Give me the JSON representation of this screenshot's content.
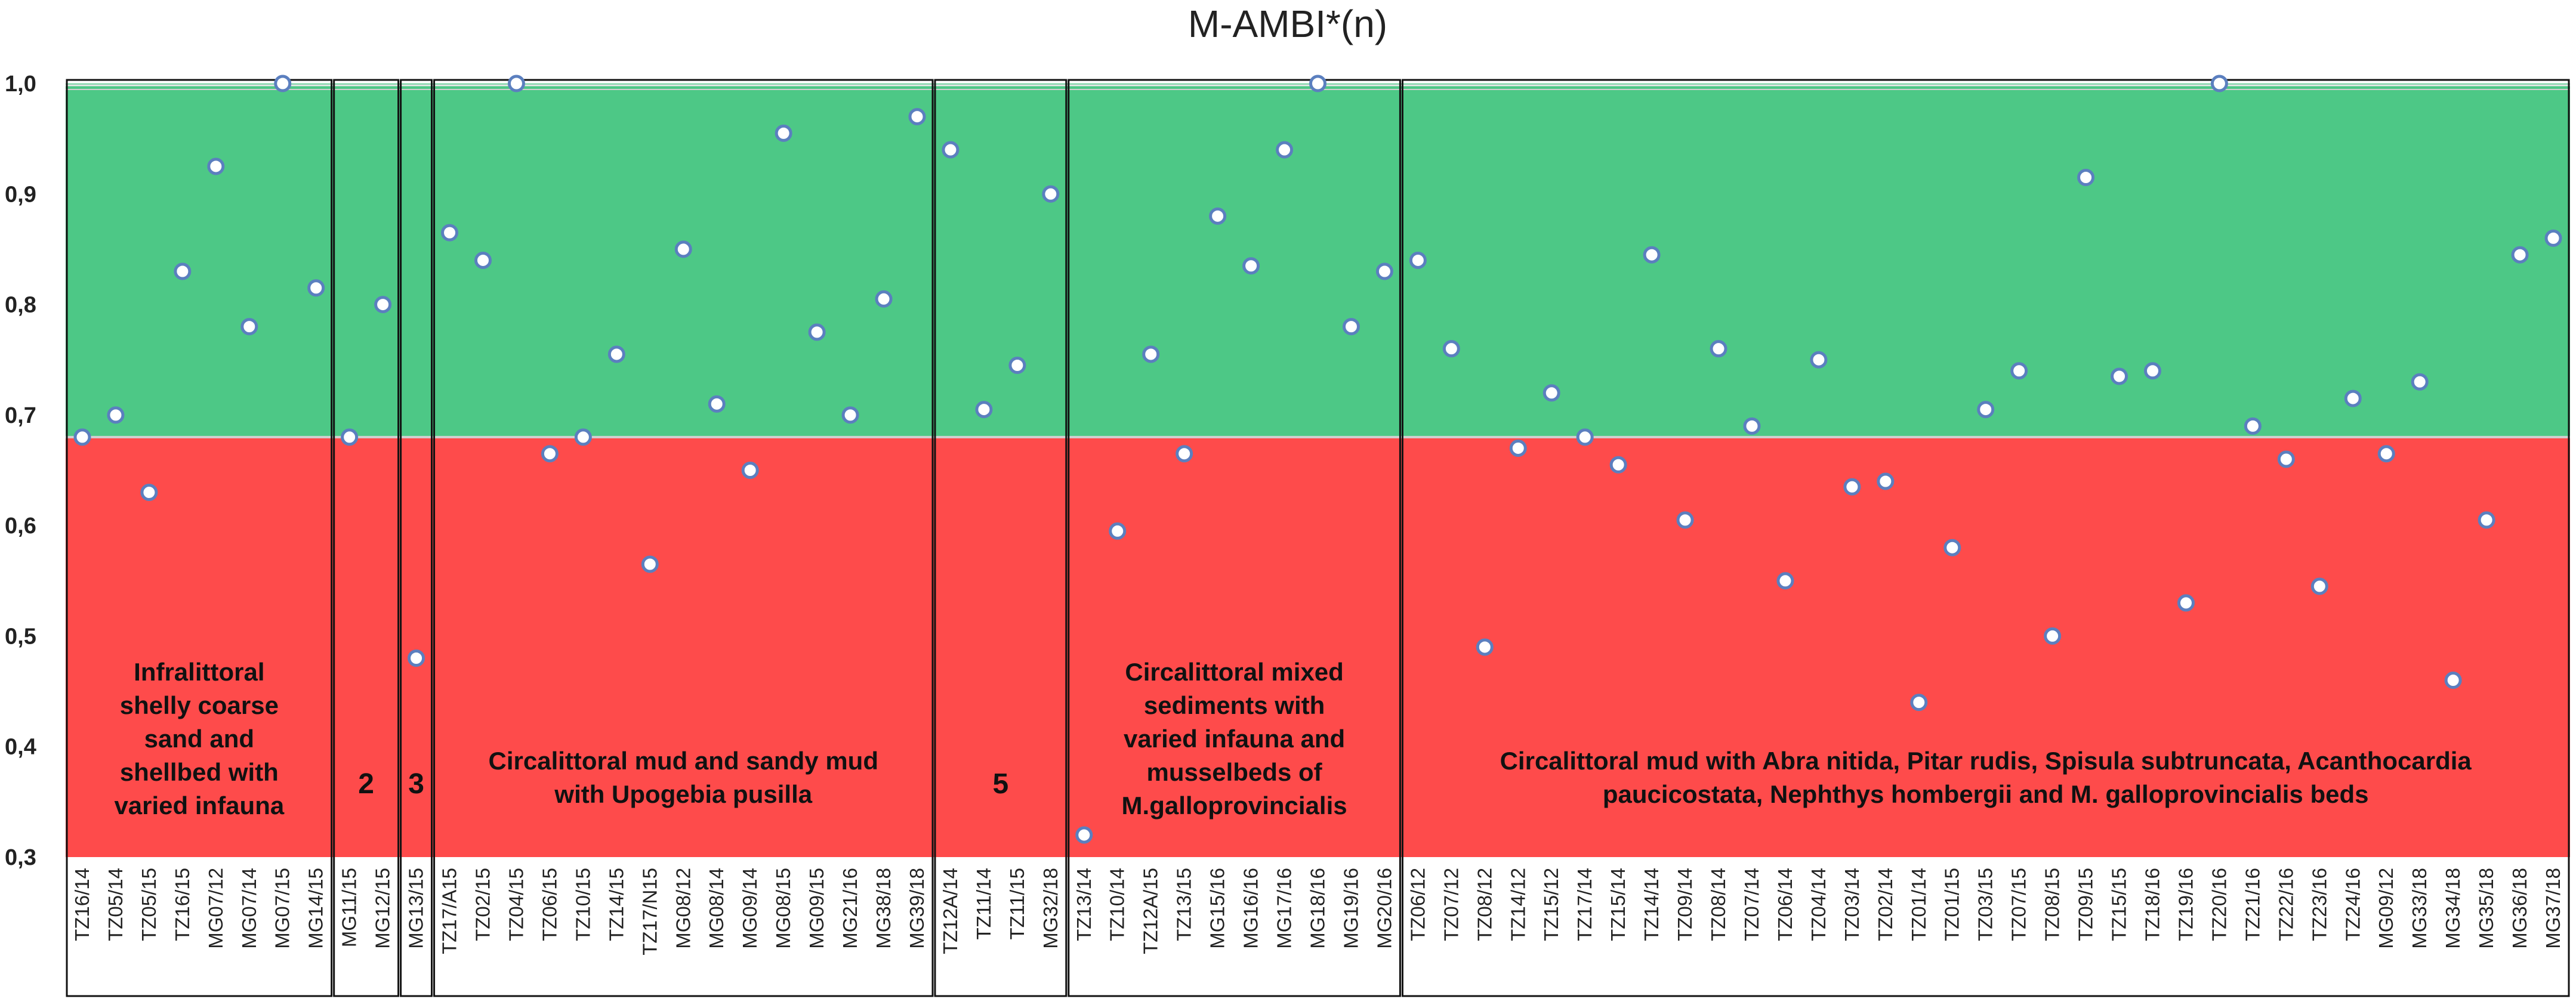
{
  "chart_data": {
    "type": "scatter",
    "title": "M-AMBI*(n)",
    "xlabel": "",
    "ylabel": "",
    "ylim": [
      0.3,
      1.0
    ],
    "y_ticks": [
      "0,3",
      "0,4",
      "0,5",
      "0,6",
      "0,7",
      "0,8",
      "0,9",
      "1,0"
    ],
    "threshold": 0.68,
    "colors": {
      "good": "#4dc886",
      "bad": "#fe4b4b",
      "marker_fill": "#ffffff",
      "marker_edge": "#5b7fbf"
    },
    "stations": [
      "TZ16/14",
      "TZ05/14",
      "TZ05/15",
      "TZ16/15",
      "MG07/12",
      "MG07/14",
      "MG07/15",
      "MG14/15",
      "MG11/15",
      "MG12/15",
      "MG13/15",
      "TZ17/A15",
      "TZ02/15",
      "TZ04/15",
      "TZ06/15",
      "TZ10/15",
      "TZ14/15",
      "TZ17/N15",
      "MG08/12",
      "MG08/14",
      "MG09/14",
      "MG08/15",
      "MG09/15",
      "MG21/16",
      "MG38/18",
      "MG39/18",
      "TZ12A/14",
      "TZ11/14",
      "TZ11/15",
      "MG32/18",
      "TZ13/14",
      "TZ10/14",
      "TZ12A/15",
      "TZ13/15",
      "MG15/16",
      "MG16/16",
      "MG17/16",
      "MG18/16",
      "MG19/16",
      "MG20/16",
      "TZ06/12",
      "TZ07/12",
      "TZ08/12",
      "TZ14/12",
      "TZ15/12",
      "TZ17/14",
      "TZ15/14",
      "TZ14/14",
      "TZ09/14",
      "TZ08/14",
      "TZ07/14",
      "TZ06/14",
      "TZ04/14",
      "TZ03/14",
      "TZ02/14",
      "TZ01/14",
      "TZ01/15",
      "TZ03/15",
      "TZ07/15",
      "TZ08/15",
      "TZ09/15",
      "TZ15/15",
      "TZ18/16",
      "TZ19/16",
      "TZ20/16",
      "TZ21/16",
      "TZ22/16",
      "TZ23/16",
      "TZ24/16",
      "MG09/12",
      "MG33/18",
      "MG34/18",
      "MG35/18",
      "MG36/18",
      "MG37/18"
    ],
    "values": [
      0.68,
      0.7,
      0.63,
      0.83,
      0.925,
      0.78,
      1.0,
      0.815,
      0.68,
      0.8,
      0.48,
      0.865,
      0.84,
      1.0,
      0.665,
      0.68,
      0.755,
      0.565,
      0.85,
      0.71,
      0.65,
      0.955,
      0.775,
      0.7,
      0.805,
      0.97,
      0.94,
      0.705,
      0.745,
      0.9,
      0.32,
      0.595,
      0.755,
      0.665,
      0.88,
      0.835,
      0.94,
      1.0,
      0.78,
      0.83,
      0.84,
      0.76,
      0.49,
      0.67,
      0.72,
      0.68,
      0.655,
      0.845,
      0.605,
      0.76,
      0.69,
      0.55,
      0.75,
      0.635,
      0.64,
      0.44,
      0.58,
      0.705,
      0.74,
      0.5,
      0.915,
      0.735,
      0.74,
      0.53,
      1.0,
      0.69,
      0.66,
      0.545,
      0.715,
      0.665,
      0.73,
      0.46,
      0.605,
      0.845,
      0.86
    ],
    "groups": [
      {
        "label": "Infralittoral shelly coarse sand and shellbed with varied infauna",
        "lines": [
          "Infralittoral",
          "shelly coarse",
          "sand and",
          "shellbed with",
          "varied infauna"
        ],
        "start": 0,
        "count": 8
      },
      {
        "label": "2",
        "lines": [
          "2"
        ],
        "start": 8,
        "count": 2
      },
      {
        "label": "3",
        "lines": [
          "3"
        ],
        "start": 10,
        "count": 1
      },
      {
        "label": "Circalittoral mud and sandy mud with Upogebia pusilla",
        "lines": [
          "Circalittoral mud and sandy mud",
          "with Upogebia pusilla"
        ],
        "start": 11,
        "count": 15
      },
      {
        "label": "5",
        "lines": [
          "5"
        ],
        "start": 26,
        "count": 4
      },
      {
        "label": "Circalittoral mixed sediments with varied infauna and musselbeds of M.galloprovincialis",
        "lines": [
          "Circalittoral mixed",
          "sediments with",
          "varied infauna and",
          "musselbeds of",
          "M.galloprovincialis"
        ],
        "start": 30,
        "count": 10
      },
      {
        "label": "Circalittoral mud with Abra nitida, Pitar rudis, Spisula subtruncata, Acanthocardia paucicostata, Nephthys hombergii and M. galloprovincialis beds",
        "lines": [
          "Circalittoral mud with Abra nitida, Pitar rudis, Spisula subtruncata, Acanthocardia",
          "paucicostata, Nephthys hombergii and M. galloprovincialis beds"
        ],
        "start": 40,
        "count": 35
      }
    ]
  }
}
